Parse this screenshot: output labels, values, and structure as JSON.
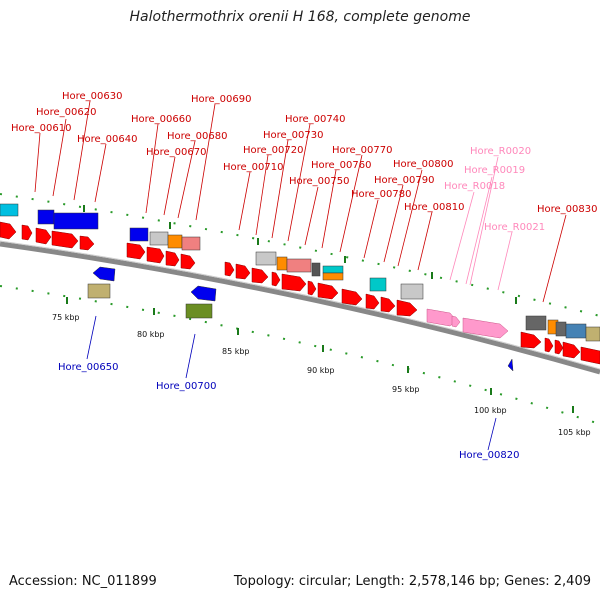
{
  "title": "Halothermothrix orenii H 168, complete genome",
  "footer": {
    "accession": "Accession: NC_011899",
    "topology": "Topology: circular; Length: 2,578,146 bp; Genes: 2,409"
  },
  "colors": {
    "cds": "#ff0000",
    "rna": "#ff99cc",
    "cds_label": "#cc0000",
    "rna_label": "#ff88bb",
    "reverse_label": "#0000bb",
    "reverse_cds": "#0000ee",
    "backbone": "#888888"
  },
  "ticks": [
    "75 kbp",
    "80 kbp",
    "85 kbp",
    "90 kbp",
    "95 kbp",
    "100 kbp",
    "105 kbp"
  ],
  "labels_top": [
    "Hore_00610",
    "Hore_00620",
    "Hore_00630",
    "Hore_00640",
    "Hore_00660",
    "Hore_00670",
    "Hore_00680",
    "Hore_00690",
    "Hore_00710",
    "Hore_00720",
    "Hore_00730",
    "Hore_00740",
    "Hore_00750",
    "Hore_00760",
    "Hore_00770",
    "Hore_00780",
    "Hore_00790",
    "Hore_00800",
    "Hore_00810",
    "Hore_R0018",
    "Hore_R0019",
    "Hore_R0020",
    "Hore_R0021",
    "Hore_00830"
  ],
  "labels_bottom": [
    "Hore_00650",
    "Hore_00700",
    "Hore_00820"
  ]
}
